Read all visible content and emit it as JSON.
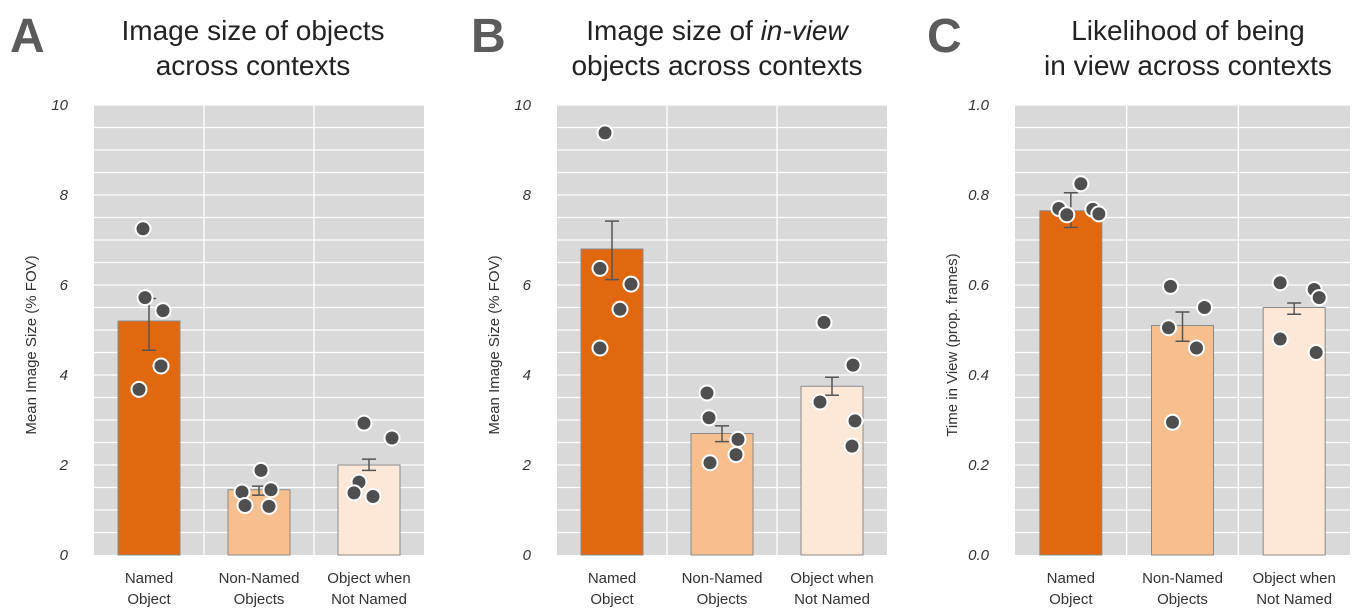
{
  "colors": {
    "plot_background": "#d9d9d9",
    "grid": "#ffffff",
    "named_object": "#e2680f",
    "non_named_objects": "#f7be8e",
    "object_when_not_named": "#fde7d6",
    "points": "#4f4f4f",
    "error_bars": "#555555"
  },
  "chart_data": [
    {
      "type": "bar",
      "panel": "A",
      "title_lines": [
        "Image size of objects",
        "across contexts"
      ],
      "ylabel": "Mean Image Size (% FOV)",
      "ylim": [
        0,
        10
      ],
      "yticks": [
        "0",
        "2",
        "4",
        "6",
        "8",
        "10"
      ],
      "ytick_values": [
        0,
        2,
        4,
        6,
        8,
        10
      ],
      "grid": true,
      "categories": [
        [
          "Named",
          "Object"
        ],
        [
          "Non-Named",
          "Objects"
        ],
        [
          "Object when",
          "Not Named"
        ]
      ],
      "values": [
        5.2,
        1.45,
        2.0
      ],
      "error": [
        [
          4.55,
          5.7
        ],
        [
          1.33,
          1.53
        ],
        [
          1.88,
          2.13
        ]
      ],
      "points": [
        [
          7.25,
          5.72,
          5.43,
          4.2,
          3.68
        ],
        [
          1.88,
          1.4,
          1.45,
          1.1,
          1.08
        ],
        [
          2.93,
          2.6,
          1.62,
          1.38,
          1.3
        ]
      ]
    },
    {
      "type": "bar",
      "panel": "B",
      "title_lines": [
        "Image size of *in-view*",
        "objects across contexts"
      ],
      "title_plain": "Image size of ",
      "title_italic": "in-view",
      "title_line2": "objects across contexts",
      "ylabel": "Mean Image Size (% FOV)",
      "ylim": [
        0,
        10
      ],
      "yticks": [
        "0",
        "2",
        "4",
        "6",
        "8",
        "10"
      ],
      "ytick_values": [
        0,
        2,
        4,
        6,
        8,
        10
      ],
      "grid": true,
      "categories": [
        [
          "Named",
          "Object"
        ],
        [
          "Non-Named",
          "Objects"
        ],
        [
          "Object when",
          "Not Named"
        ]
      ],
      "values": [
        6.8,
        2.7,
        3.75
      ],
      "error": [
        [
          6.12,
          7.42
        ],
        [
          2.52,
          2.87
        ],
        [
          3.55,
          3.95
        ]
      ],
      "points": [
        [
          9.38,
          6.37,
          6.02,
          5.46,
          4.6
        ],
        [
          3.6,
          3.05,
          2.57,
          2.23,
          2.05
        ],
        [
          5.17,
          4.22,
          3.4,
          2.98,
          2.42
        ]
      ]
    },
    {
      "type": "bar",
      "panel": "C",
      "title_lines": [
        "Likelihood of being",
        "in view across contexts"
      ],
      "ylabel": "Time in View (prop. frames)",
      "ylim": [
        0,
        1.0
      ],
      "yticks": [
        "0.0",
        "0.2",
        "0.4",
        "0.6",
        "0.8",
        "1.0"
      ],
      "ytick_values": [
        0,
        0.2,
        0.4,
        0.6,
        0.8,
        1.0
      ],
      "grid": true,
      "categories": [
        [
          "Named",
          "Object"
        ],
        [
          "Non-Named",
          "Objects"
        ],
        [
          "Object when",
          "Not Named"
        ]
      ],
      "values": [
        0.765,
        0.51,
        0.55
      ],
      "error": [
        [
          0.728,
          0.805
        ],
        [
          0.475,
          0.54
        ],
        [
          0.535,
          0.56
        ]
      ],
      "points": [
        [
          0.825,
          0.77,
          0.768,
          0.758,
          0.756
        ],
        [
          0.597,
          0.55,
          0.505,
          0.46,
          0.295
        ],
        [
          0.605,
          0.59,
          0.572,
          0.48,
          0.45
        ]
      ]
    }
  ]
}
